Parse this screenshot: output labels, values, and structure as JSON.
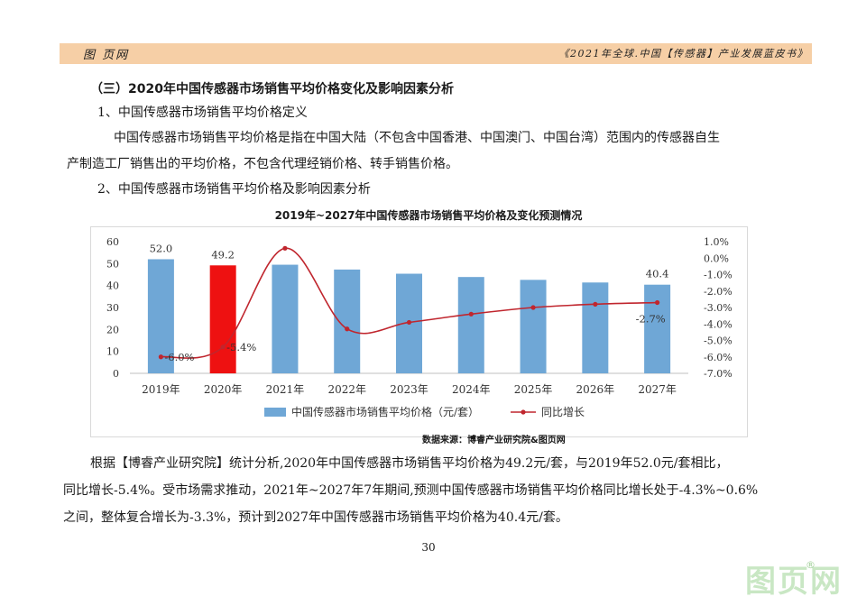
{
  "header": {
    "left": "图 页网",
    "right": "《2021年全球.中国【传感器】产业发展蓝皮书》"
  },
  "body": {
    "section_title": "（三）2020年中国传感器市场销售平均价格变化及影响因素分析",
    "sub1": "1、中国传感器市场销售平均价格定义",
    "para1_line1": "中国传感器市场销售平均价格是指在中国大陆（不包含中国香港、中国澳门、中国台湾）范围内的传感器自生",
    "para1_line2": "产制造工厂销售出的平均价格，不包含代理经销价格、转手销售价格。",
    "sub2": "2、中国传感器市场销售平均价格及影响因素分析",
    "para2_line1": "根据【博睿产业研究院】统计分析,2020年中国传感器市场销售平均价格为49.2元/套，与2019年52.0元/套相比，",
    "para2_line2": "同比增长-5.4%。受市场需求推动，2021年~2027年7年期间,预测中国传感器市场销售平均价格同比增长处于-4.3%~0.6%",
    "para2_line3": "之间，整体复合增长为-3.3%，预计到2027年中国传感器市场销售平均价格为40.4元/套。"
  },
  "chart_data": {
    "type": "bar",
    "title": "2019年~2027年中国传感器市场销售平均价格及变化预测情况",
    "categories": [
      "2019年",
      "2020年",
      "2021年",
      "2022年",
      "2023年",
      "2024年",
      "2025年",
      "2026年",
      "2027年"
    ],
    "series": [
      {
        "name": "中国传感器市场销售平均价格（元/套）",
        "type": "bar",
        "axis": "left",
        "values": [
          52.0,
          49.2,
          49.5,
          47.3,
          45.4,
          43.9,
          42.6,
          41.4,
          40.4
        ],
        "highlight_index": 1,
        "color": "#6fa7d6",
        "highlight_color": "#ee1111"
      },
      {
        "name": "同比增长",
        "type": "line",
        "axis": "right",
        "smooth": true,
        "values": [
          -6.0,
          -5.4,
          0.6,
          -4.3,
          -3.9,
          -3.4,
          -3.0,
          -2.8,
          -2.7
        ],
        "color": "#c0262e"
      }
    ],
    "data_labels": [
      {
        "series": 0,
        "index": 0,
        "text": "52.0"
      },
      {
        "series": 0,
        "index": 1,
        "text": "49.2"
      },
      {
        "series": 0,
        "index": 8,
        "text": "40.4"
      },
      {
        "series": 1,
        "index": 0,
        "text": "-6.0%"
      },
      {
        "series": 1,
        "index": 1,
        "text": "-5.4%"
      },
      {
        "series": 1,
        "index": 8,
        "text": "-2.7%"
      }
    ],
    "ylim_left": [
      0,
      60
    ],
    "yticks_left": [
      "0",
      "10",
      "20",
      "30",
      "40",
      "50",
      "60"
    ],
    "ylim_right": [
      -7.0,
      1.0
    ],
    "yticks_right": [
      "1.0%",
      "0.0%",
      "-1.0%",
      "-2.0%",
      "-3.0%",
      "-4.0%",
      "-5.0%",
      "-6.0%",
      "-7.0%"
    ],
    "yticks_right_values": [
      1,
      0,
      -1,
      -2,
      -3,
      -4,
      -5,
      -6,
      -7
    ],
    "legend": [
      "中国传感器市场销售平均价格（元/套）",
      "同比增长"
    ],
    "legend_position": "bottom"
  },
  "source": "数据来源：博睿产业研究院&图页网",
  "page_number": "30",
  "watermark": "图页网",
  "watermark_mark": "®"
}
